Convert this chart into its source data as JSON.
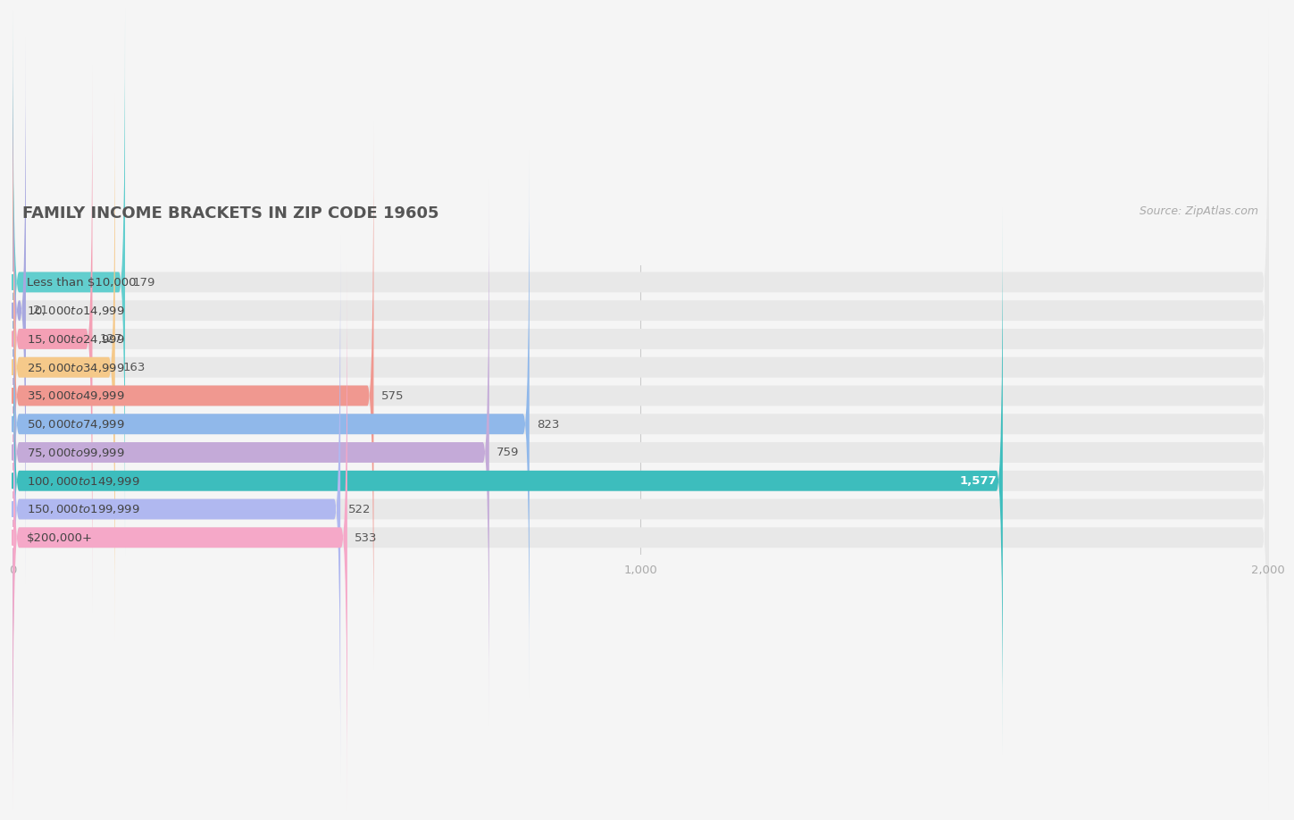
{
  "title": "FAMILY INCOME BRACKETS IN ZIP CODE 19605",
  "source": "Source: ZipAtlas.com",
  "categories": [
    "Less than $10,000",
    "$10,000 to $14,999",
    "$15,000 to $24,999",
    "$25,000 to $34,999",
    "$35,000 to $49,999",
    "$50,000 to $74,999",
    "$75,000 to $99,999",
    "$100,000 to $149,999",
    "$150,000 to $199,999",
    "$200,000+"
  ],
  "values": [
    179,
    21,
    127,
    163,
    575,
    823,
    759,
    1577,
    522,
    533
  ],
  "bar_colors": [
    "#62cece",
    "#a8a8df",
    "#f4a0b5",
    "#f5c98a",
    "#f09890",
    "#90b8ea",
    "#c4aad8",
    "#3dbdbd",
    "#b0b8f0",
    "#f5a8c8"
  ],
  "value_color_white": [
    false,
    false,
    false,
    false,
    false,
    false,
    false,
    true,
    false,
    false
  ],
  "xlim": [
    0,
    2000
  ],
  "xticks": [
    0,
    1000,
    2000
  ],
  "background_color": "#f5f5f5",
  "bar_bg_color": "#e8e8e8",
  "title_fontsize": 13,
  "source_fontsize": 9,
  "label_fontsize": 9.5,
  "value_fontsize": 9.5
}
